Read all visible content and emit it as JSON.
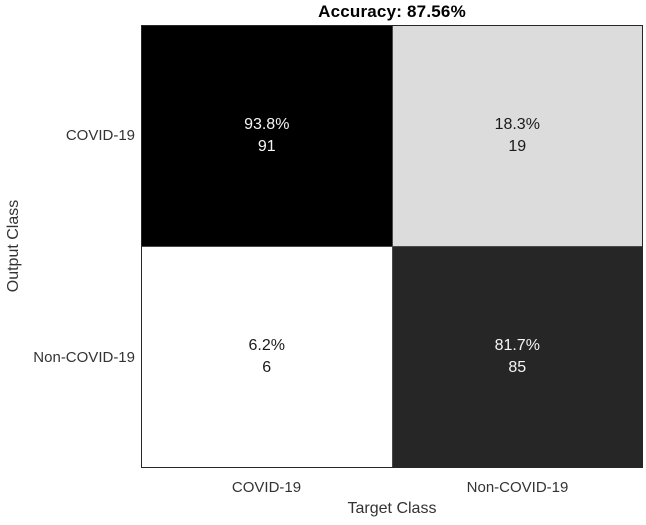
{
  "chart_data": {
    "type": "heatmap",
    "subtype": "confusion-matrix",
    "title": "Accuracy: 87.56%",
    "accuracy_percent": 87.56,
    "xlabel": "Target Class",
    "ylabel": "Output Class",
    "classes": [
      "COVID-19",
      "Non-COVID-19"
    ],
    "counts_matrix": [
      [
        91,
        19
      ],
      [
        6,
        85
      ]
    ],
    "percent_matrix": [
      [
        93.8,
        18.3
      ],
      [
        6.2,
        81.7
      ]
    ],
    "cells": [
      {
        "row": "COVID-19",
        "col": "COVID-19",
        "percent": "93.8%",
        "count": "91",
        "bg": "#000000",
        "fg": "#f5f5f5"
      },
      {
        "row": "COVID-19",
        "col": "Non-COVID-19",
        "percent": "18.3%",
        "count": "19",
        "bg": "#dcdcdc",
        "fg": "#1a1a1a"
      },
      {
        "row": "Non-COVID-19",
        "col": "COVID-19",
        "percent": "6.2%",
        "count": "6",
        "bg": "#ffffff",
        "fg": "#1a1a1a"
      },
      {
        "row": "Non-COVID-19",
        "col": "Non-COVID-19",
        "percent": "81.7%",
        "count": "85",
        "bg": "#262626",
        "fg": "#f5f5f5"
      }
    ],
    "layout": {
      "legend": "none",
      "grid": "cell-borders",
      "grid_line_color": "#4a4a4a",
      "border_color": "#262626",
      "label_text_color": "#333333",
      "title_text_color": "#000000",
      "background": "#ffffff"
    }
  }
}
